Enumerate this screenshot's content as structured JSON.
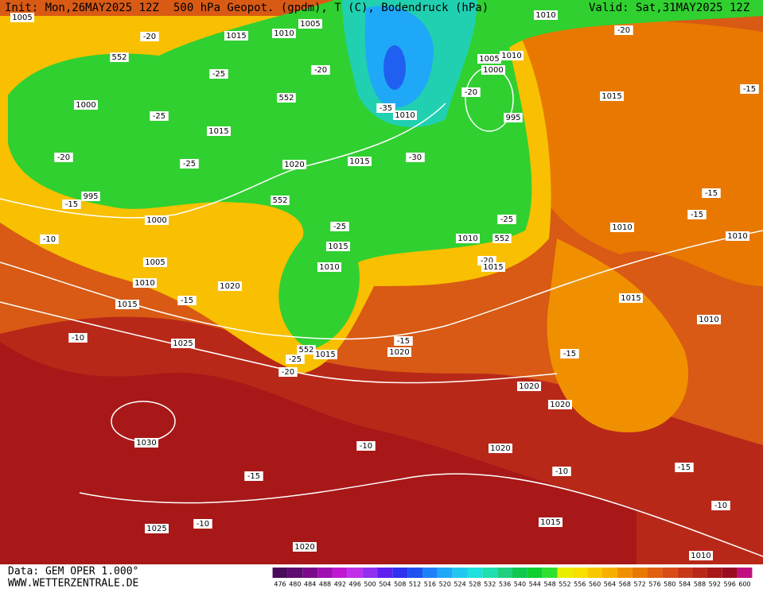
{
  "header": {
    "init": "Init: Mon,26MAY2025 12Z",
    "title": "500 hPa Geopot. (gpdm), T (C), Bodendruck (hPa)",
    "valid": "Valid: Sat,31MAY2025 12Z"
  },
  "footer": {
    "source": "Data: GEM OPER 1.000°",
    "site": "WWW.WETTERZENTRALE.DE"
  },
  "map": {
    "contour_labels": [
      "1005",
      "-20",
      "1015",
      "1010",
      "1005",
      "1010",
      "-20",
      "552",
      "-25",
      "-20",
      "1005",
      "1010",
      "1000",
      "-20",
      "-15",
      "1015",
      "1000",
      "-25",
      "552",
      "-35",
      "1010",
      "995",
      "1015",
      "-20",
      "-25",
      "1020",
      "1015",
      "-30",
      "995",
      "-15",
      "552",
      "-15",
      "-15",
      "1000",
      "-25",
      "-25",
      "1010",
      "1010",
      "-10",
      "1010",
      "552",
      "1015",
      "1005",
      "-20",
      "1015",
      "1010",
      "1010",
      "1020",
      "-15",
      "1015",
      "1015",
      "1010",
      "-10",
      "1025",
      "552",
      "-15",
      "1015",
      "1020",
      "-15",
      "-25",
      "-20",
      "1020",
      "1020",
      "1030",
      "-10",
      "1020",
      "-10",
      "-15",
      "-15",
      "-10",
      "-10",
      "1015",
      "1025",
      "1020",
      "1010"
    ]
  },
  "legend": {
    "values": [
      476,
      480,
      484,
      488,
      492,
      496,
      500,
      504,
      508,
      512,
      516,
      520,
      524,
      528,
      532,
      536,
      540,
      544,
      548,
      552,
      556,
      560,
      564,
      568,
      572,
      576,
      580,
      584,
      588,
      592,
      596,
      600
    ],
    "colors": [
      "#4b0a5a",
      "#5e0c70",
      "#7a0a8a",
      "#a010b0",
      "#c018d0",
      "#c030e8",
      "#9030f0",
      "#6020f0",
      "#3030f0",
      "#2050f0",
      "#2080f8",
      "#20a8f8",
      "#20c8f0",
      "#20e0e0",
      "#20e0b0",
      "#20d080",
      "#10c850",
      "#10d030",
      "#30e030",
      "#e8f000",
      "#f8e000",
      "#f8c800",
      "#f8b000",
      "#f09000",
      "#e87800",
      "#e06010",
      "#d84c18",
      "#c83818",
      "#b82818",
      "#a81818",
      "#980c20",
      "#c01080"
    ]
  }
}
